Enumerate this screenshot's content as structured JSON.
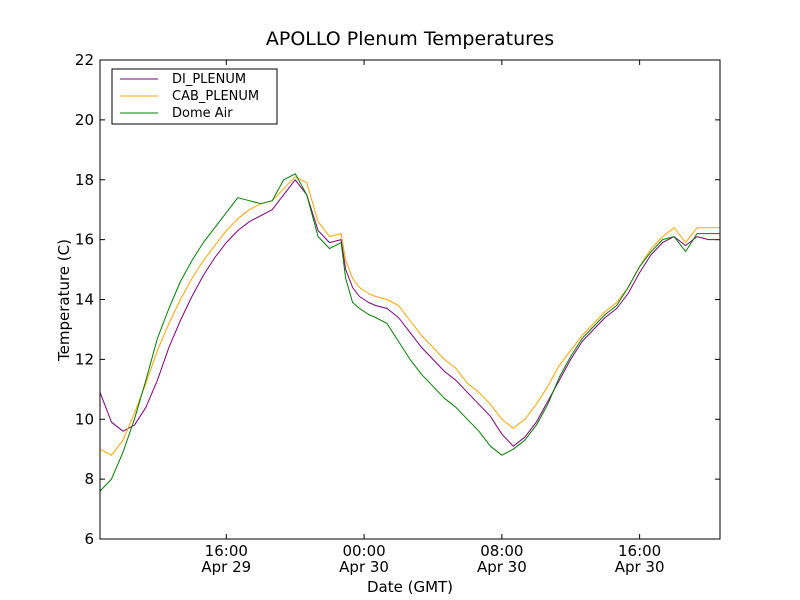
{
  "chart_data": {
    "type": "line",
    "title": "APOLLO Plenum Temperatures",
    "xlabel": "Date (GMT)",
    "ylabel": "Temperature (C)",
    "xlim": [
      10.5,
      37.5
    ],
    "ylim": [
      6,
      22
    ],
    "y_ticks": [
      6,
      8,
      10,
      12,
      14,
      16,
      18,
      20,
      22
    ],
    "x_ticks": [
      {
        "x": 16,
        "line1": "16:00",
        "line2": "Apr 29"
      },
      {
        "x": 22,
        "line1": "00:00",
        "line2": "Apr 30"
      },
      {
        "x": 28,
        "line1": "08:00",
        "line2": "Apr 30"
      },
      {
        "x": 34,
        "line1": "16:00",
        "line2": "Apr 30"
      }
    ],
    "legend_position": "top-left",
    "series": [
      {
        "name": "DI_PLENUM",
        "color": "#800080",
        "x": [
          10.5,
          11.0,
          11.5,
          12.0,
          12.5,
          13.0,
          13.5,
          14.0,
          14.5,
          15.0,
          15.5,
          16.0,
          16.5,
          17.0,
          17.5,
          18.0,
          18.5,
          19.0,
          19.5,
          20.0,
          20.5,
          21.0,
          21.2,
          21.5,
          21.8,
          22.0,
          22.2,
          22.5,
          23.0,
          23.5,
          24.0,
          24.5,
          25.0,
          25.5,
          26.0,
          26.5,
          27.0,
          27.5,
          28.0,
          28.5,
          29.0,
          29.5,
          30.0,
          30.5,
          31.0,
          31.5,
          32.0,
          32.5,
          33.0,
          33.5,
          34.0,
          34.5,
          35.0,
          35.5,
          36.0,
          36.5,
          37.0,
          37.5
        ],
        "y": [
          10.9,
          9.9,
          9.6,
          9.8,
          10.4,
          11.3,
          12.4,
          13.3,
          14.1,
          14.8,
          15.4,
          15.9,
          16.3,
          16.6,
          16.8,
          17.0,
          17.5,
          18.0,
          17.5,
          16.3,
          15.9,
          16.0,
          15.0,
          14.4,
          14.1,
          14.0,
          13.9,
          13.8,
          13.7,
          13.4,
          12.9,
          12.4,
          12.0,
          11.6,
          11.3,
          10.9,
          10.5,
          10.1,
          9.5,
          9.1,
          9.4,
          9.9,
          10.6,
          11.3,
          12.0,
          12.6,
          13.0,
          13.4,
          13.7,
          14.2,
          14.9,
          15.5,
          15.9,
          16.1,
          15.8,
          16.1,
          16.0,
          16.0
        ]
      },
      {
        "name": "CAB_PLENUM",
        "color": "#ffa500",
        "x": [
          10.5,
          11.0,
          11.5,
          12.0,
          12.5,
          13.0,
          13.5,
          14.0,
          14.5,
          15.0,
          15.5,
          16.0,
          16.5,
          17.0,
          17.5,
          18.0,
          18.5,
          19.0,
          19.5,
          20.0,
          20.5,
          21.0,
          21.2,
          21.5,
          21.8,
          22.0,
          22.2,
          22.5,
          23.0,
          23.5,
          24.0,
          24.5,
          25.0,
          25.5,
          26.0,
          26.5,
          27.0,
          27.5,
          28.0,
          28.5,
          29.0,
          29.5,
          30.0,
          30.5,
          31.0,
          31.5,
          32.0,
          32.5,
          33.0,
          33.5,
          34.0,
          34.5,
          35.0,
          35.5,
          36.0,
          36.5,
          37.0,
          37.5
        ],
        "y": [
          9.0,
          8.8,
          9.3,
          10.2,
          11.2,
          12.3,
          13.2,
          14.0,
          14.7,
          15.3,
          15.8,
          16.3,
          16.7,
          17.0,
          17.2,
          17.3,
          17.7,
          18.1,
          17.9,
          16.6,
          16.1,
          16.2,
          15.3,
          14.7,
          14.4,
          14.3,
          14.2,
          14.1,
          14.0,
          13.8,
          13.3,
          12.8,
          12.4,
          12.0,
          11.7,
          11.2,
          10.9,
          10.5,
          10.0,
          9.7,
          10.0,
          10.5,
          11.1,
          11.8,
          12.3,
          12.8,
          13.2,
          13.6,
          13.9,
          14.4,
          15.1,
          15.7,
          16.1,
          16.4,
          15.9,
          16.4,
          16.4,
          16.4
        ]
      },
      {
        "name": "Dome Air",
        "color": "#008000",
        "x": [
          10.5,
          11.0,
          11.5,
          12.0,
          12.5,
          13.0,
          13.5,
          14.0,
          14.5,
          15.0,
          15.5,
          16.0,
          16.5,
          17.0,
          17.5,
          18.0,
          18.5,
          19.0,
          19.5,
          20.0,
          20.5,
          21.0,
          21.2,
          21.5,
          21.8,
          22.0,
          22.2,
          22.5,
          23.0,
          23.5,
          24.0,
          24.5,
          25.0,
          25.5,
          26.0,
          26.5,
          27.0,
          27.5,
          28.0,
          28.5,
          29.0,
          29.5,
          30.0,
          30.5,
          31.0,
          31.5,
          32.0,
          32.5,
          33.0,
          33.5,
          34.0,
          34.5,
          35.0,
          35.5,
          36.0,
          36.5,
          37.0,
          37.5
        ],
        "y": [
          7.6,
          8.0,
          8.9,
          10.0,
          11.3,
          12.7,
          13.7,
          14.6,
          15.3,
          15.9,
          16.4,
          16.9,
          17.4,
          17.3,
          17.2,
          17.3,
          18.0,
          18.2,
          17.5,
          16.1,
          15.7,
          15.9,
          14.7,
          13.9,
          13.7,
          13.6,
          13.5,
          13.4,
          13.2,
          12.6,
          12.0,
          11.5,
          11.1,
          10.7,
          10.4,
          10.0,
          9.6,
          9.1,
          8.8,
          9.0,
          9.3,
          9.8,
          10.5,
          11.4,
          12.1,
          12.7,
          13.1,
          13.5,
          13.8,
          14.4,
          15.1,
          15.6,
          16.0,
          16.1,
          15.6,
          16.2,
          16.2,
          16.2
        ]
      }
    ]
  }
}
